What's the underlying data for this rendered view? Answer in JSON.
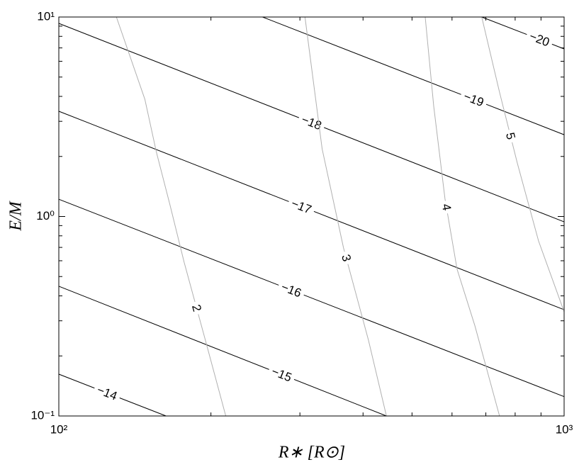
{
  "chart_data": {
    "type": "contour",
    "xlabel": "R∗ [R⊙]",
    "ylabel": "E/M",
    "xscale": "log",
    "yscale": "log",
    "xlim": [
      100,
      1000
    ],
    "ylim": [
      0.1,
      10
    ],
    "xticks": [
      {
        "value": 100,
        "label": "10²"
      },
      {
        "value": 1000,
        "label": "10³"
      }
    ],
    "yticks": [
      {
        "value": 0.1,
        "label": "10⁻¹"
      },
      {
        "value": 1,
        "label": "10⁰"
      },
      {
        "value": 10,
        "label": "10¹"
      }
    ],
    "xminor": [
      200,
      300,
      400,
      500,
      600,
      700,
      800,
      900
    ],
    "yminor": [
      0.2,
      0.3,
      0.4,
      0.5,
      0.6,
      0.7,
      0.8,
      0.9,
      2,
      3,
      4,
      5,
      6,
      7,
      8,
      9
    ],
    "series": [
      {
        "name": "−14",
        "color": "#000000",
        "x": [
          100,
          163
        ],
        "values": [
          0.162,
          0.1
        ]
      },
      {
        "name": "−15",
        "color": "#000000",
        "x": [
          100,
          445
        ],
        "values": [
          0.447,
          0.1
        ]
      },
      {
        "name": "−16",
        "color": "#000000",
        "x": [
          100,
          1000
        ],
        "values": [
          1.22,
          0.125
        ]
      },
      {
        "name": "−17",
        "color": "#000000",
        "x": [
          100,
          1000
        ],
        "values": [
          3.37,
          0.341
        ]
      },
      {
        "name": "−18",
        "color": "#000000",
        "x": [
          100,
          1000
        ],
        "values": [
          9.29,
          0.94
        ]
      },
      {
        "name": "−19",
        "color": "#000000",
        "x": [
          253,
          1000
        ],
        "values": [
          10,
          2.57
        ]
      },
      {
        "name": "−20",
        "color": "#000000",
        "x": [
          687,
          1000
        ],
        "values": [
          10,
          6.92
        ]
      },
      {
        "name": "2",
        "color": "#b0b0b0",
        "x": [
          130,
          148,
          156,
          166,
          177,
          195,
          214
        ],
        "values": [
          10,
          3.87,
          2.1,
          1.14,
          0.59,
          0.24,
          0.1
        ]
      },
      {
        "name": "3",
        "color": "#b0b0b0",
        "x": [
          307,
          332,
          366,
          410,
          445
        ],
        "values": [
          10,
          2.18,
          0.695,
          0.24,
          0.1
        ]
      },
      {
        "name": "4",
        "color": "#b0b0b0",
        "x": [
          531,
          552,
          581,
          614,
          666,
          745
        ],
        "values": [
          10,
          3.57,
          1.23,
          0.544,
          0.283,
          0.1
        ]
      },
      {
        "name": "5",
        "color": "#b0b0b0",
        "x": [
          687,
          745,
          808,
          890,
          1000
        ],
        "values": [
          10,
          4.2,
          1.85,
          0.754,
          0.333
        ]
      }
    ]
  }
}
